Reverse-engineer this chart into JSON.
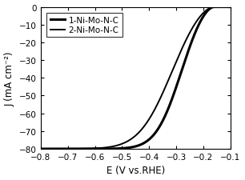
{
  "title": "",
  "xlabel": "E (V vs.RHE)",
  "ylabel": "J (mA cm⁻²)",
  "xlim": [
    -0.8,
    -0.1
  ],
  "ylim": [
    -80,
    0
  ],
  "xticks": [
    -0.8,
    -0.7,
    -0.6,
    -0.5,
    -0.4,
    -0.3,
    -0.2,
    -0.1
  ],
  "yticks": [
    -80,
    -70,
    -60,
    -50,
    -40,
    -30,
    -20,
    -10,
    0
  ],
  "curve1_label": "1-Ni-Mo-N-C",
  "curve2_label": "2-Ni-Mo-N-C",
  "curve1_color": "#000000",
  "curve2_color": "#000000",
  "curve1_lw": 2.2,
  "curve2_lw": 1.4,
  "background_color": "#ffffff",
  "curve1_E0": -0.16,
  "curve1_alpha": 22.0,
  "curve1_jlim": -80.0,
  "curve1_n": 1.8,
  "curve2_E0": -0.16,
  "curve2_alpha": 14.0,
  "curve2_jlim": -80.0,
  "curve2_n": 1.8
}
